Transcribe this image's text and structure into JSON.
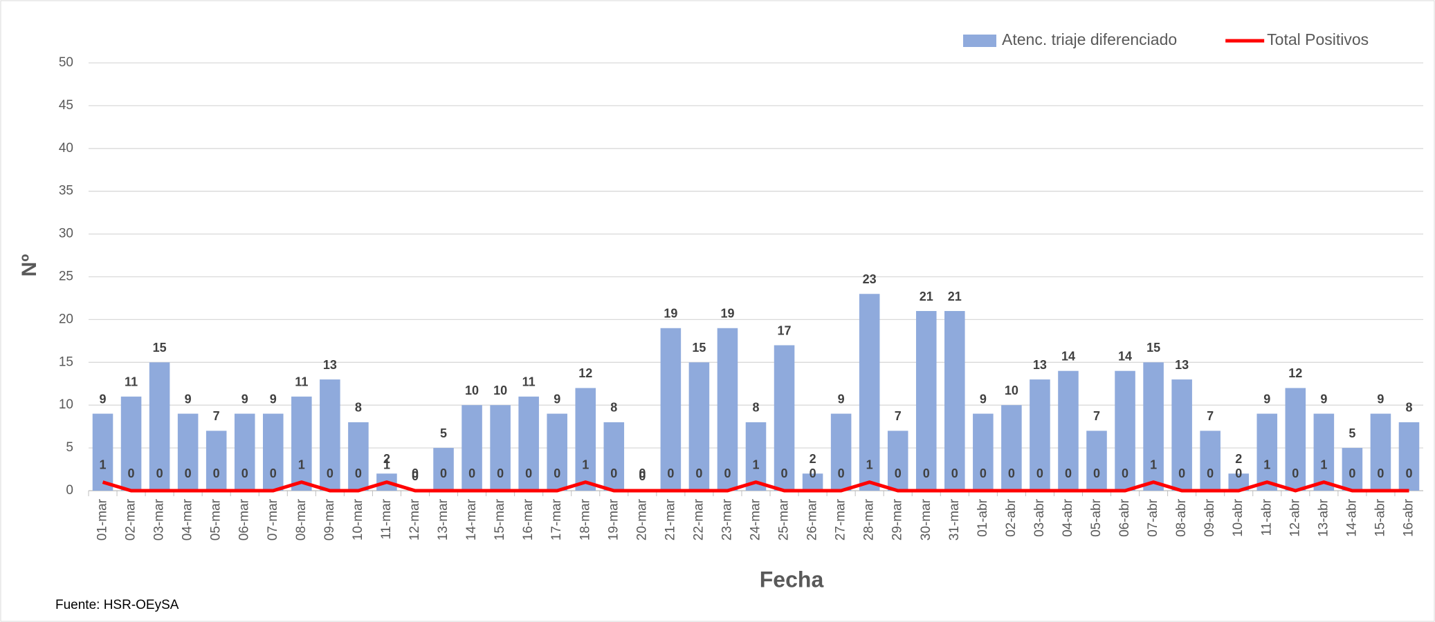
{
  "chart_data": {
    "type": "bar-line",
    "categories": [
      "01-mar",
      "02-mar",
      "03-mar",
      "04-mar",
      "05-mar",
      "06-mar",
      "07-mar",
      "08-mar",
      "09-mar",
      "10-mar",
      "11-mar",
      "12-mar",
      "13-mar",
      "14-mar",
      "15-mar",
      "16-mar",
      "17-mar",
      "18-mar",
      "19-mar",
      "20-mar",
      "21-mar",
      "22-mar",
      "23-mar",
      "24-mar",
      "25-mar",
      "26-mar",
      "27-mar",
      "28-mar",
      "29-mar",
      "30-mar",
      "31-mar",
      "01-abr",
      "02-abr",
      "03-abr",
      "04-abr",
      "05-abr",
      "06-abr",
      "07-abr",
      "08-abr",
      "09-abr",
      "10-abr",
      "11-abr",
      "12-abr",
      "13-abr",
      "14-abr",
      "15-abr",
      "16-abr"
    ],
    "series": [
      {
        "name": "Atenc. triaje diferenciado",
        "kind": "bar",
        "color": "#8faadc",
        "values": [
          9,
          11,
          15,
          9,
          7,
          9,
          9,
          11,
          13,
          8,
          2,
          0,
          5,
          10,
          10,
          11,
          9,
          12,
          8,
          0,
          19,
          15,
          19,
          8,
          17,
          2,
          9,
          23,
          7,
          21,
          21,
          9,
          10,
          13,
          14,
          7,
          14,
          15,
          13,
          7,
          2,
          9,
          12,
          9,
          5,
          9,
          8
        ]
      },
      {
        "name": "Total Positivos",
        "kind": "line",
        "color": "#ff0000",
        "values": [
          1,
          0,
          0,
          0,
          0,
          0,
          0,
          1,
          0,
          0,
          1,
          0,
          0,
          0,
          0,
          0,
          0,
          1,
          0,
          0,
          0,
          0,
          0,
          1,
          0,
          0,
          0,
          1,
          0,
          0,
          0,
          0,
          0,
          0,
          0,
          0,
          0,
          1,
          0,
          0,
          0,
          1,
          0,
          1,
          0,
          0,
          0
        ]
      }
    ],
    "xlabel": "Fecha",
    "ylabel": "Nº",
    "ylim": [
      0,
      50
    ],
    "yticks": [
      0,
      5,
      10,
      15,
      20,
      25,
      30,
      35,
      40,
      45,
      50
    ],
    "grid": true,
    "legend": "top-right",
    "source": "Fuente: HSR-OEySA"
  }
}
